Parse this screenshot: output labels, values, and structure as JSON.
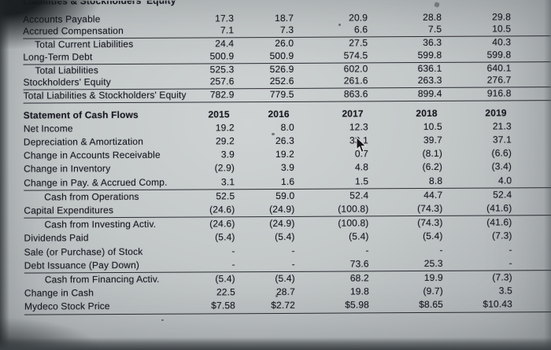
{
  "colors": {
    "page_background": "#c3c8c9",
    "text": "#191922",
    "rule_line": "#191921",
    "photo_edge": "#42474a"
  },
  "icons": {
    "cursor": "mouse-cursor"
  },
  "cropped_header": {
    "label": "Liabilities & Stockholders' Equity"
  },
  "balance_sheet": {
    "rows": [
      {
        "label": "Accounts Payable",
        "indent": false,
        "rule": false,
        "values": [
          "17.3",
          "18.7",
          "20.9",
          "28.8",
          "29.8"
        ]
      },
      {
        "label": "Accrued Compensation",
        "indent": false,
        "rule": true,
        "values": [
          "7.1",
          "7.3",
          "6.6",
          "7.5",
          "10.5"
        ]
      },
      {
        "label": "Total Current Liabilities",
        "indent": true,
        "rule": false,
        "values": [
          "24.4",
          "26.0",
          "27.5",
          "36.3",
          "40.3"
        ]
      },
      {
        "label": "Long-Term Debt",
        "indent": false,
        "rule": true,
        "values": [
          "500.9",
          "500.9",
          "574.5",
          "599.8",
          "599.8"
        ]
      },
      {
        "label": "Total Liabilities",
        "indent": true,
        "rule": false,
        "values": [
          "525.3",
          "526.9",
          "602.0",
          "636.1",
          "640.1"
        ]
      },
      {
        "label": "Stockholders' Equity",
        "indent": false,
        "rule": true,
        "values": [
          "257.6",
          "252.6",
          "261.6",
          "263.3",
          "276.7"
        ]
      },
      {
        "label": "Total Liabilities & Stockholders' Equity",
        "indent": false,
        "rule": true,
        "values": [
          "782.9",
          "779.5",
          "863.6",
          "899.4",
          "916.8"
        ]
      }
    ]
  },
  "cash_flow": {
    "title": "Statement of Cash Flows",
    "years": [
      "2015",
      "2016",
      "2017",
      "2018",
      "2019"
    ],
    "rows": [
      {
        "label": "Net Income",
        "indent": false,
        "rule": false,
        "values": [
          "19.2",
          "8.0",
          "12.3",
          "10.5",
          "21.3"
        ]
      },
      {
        "label": "Depreciation & Amortization",
        "indent": false,
        "rule": false,
        "values": [
          "29.2",
          "26.3",
          "33.1",
          "39.7",
          "37.1"
        ]
      },
      {
        "label": "Change in Accounts Receivable",
        "indent": false,
        "rule": false,
        "values": [
          "3.9",
          "19.2",
          "0.7",
          "(8.1)",
          "(6.6)"
        ]
      },
      {
        "label": "Change in Inventory",
        "indent": false,
        "rule": false,
        "values": [
          "(2.9)",
          "3.9",
          "4.8",
          "(6.2)",
          "(3.4)"
        ]
      },
      {
        "label": "Change in Pay. & Accrued Comp.",
        "indent": false,
        "rule": true,
        "values": [
          "3.1",
          "1.6",
          "1.5",
          "8.8",
          "4.0"
        ]
      },
      {
        "label": "Cash from Operations",
        "indent": true,
        "rule": false,
        "values": [
          "52.5",
          "59.0",
          "52.4",
          "44.7",
          "52.4"
        ]
      },
      {
        "label": "Capital Expenditures",
        "indent": false,
        "rule": true,
        "values": [
          "(24.6)",
          "(24.9)",
          "(100.8)",
          "(74.3)",
          "(41.6)"
        ]
      },
      {
        "label": "Cash from Investing Activ.",
        "indent": true,
        "rule": false,
        "values": [
          "(24.6)",
          "(24.9)",
          "(100.8)",
          "(74.3)",
          "(41.6)"
        ]
      },
      {
        "label": "Dividends Paid",
        "indent": false,
        "rule": false,
        "values": [
          "(5.4)",
          "(5.4)",
          "(5.4)",
          "(5.4)",
          "(7.3)"
        ]
      },
      {
        "label": "Sale (or Purchase) of Stock",
        "indent": false,
        "rule": false,
        "values": [
          "-",
          "-",
          "-",
          "-",
          "-"
        ]
      },
      {
        "label": "Debt Issuance (Pay Down)",
        "indent": false,
        "rule": true,
        "values": [
          "-",
          "-",
          "73.6",
          "25.3",
          "-"
        ]
      },
      {
        "label": "Cash from Financing Activ.",
        "indent": true,
        "rule": false,
        "values": [
          "(5.4)",
          "(5.4)",
          "68.2",
          "19.9",
          "(7.3)"
        ]
      },
      {
        "label": "Change in Cash",
        "indent": false,
        "rule": false,
        "values": [
          "22.5",
          "28.7",
          "19.8",
          "(9.7)",
          "3.5"
        ]
      },
      {
        "label": "Mydeco Stock Price",
        "indent": false,
        "rule": true,
        "values": [
          "$7.58",
          "$2.72",
          "$5.98",
          "$8.65",
          "$10.43"
        ]
      }
    ]
  }
}
